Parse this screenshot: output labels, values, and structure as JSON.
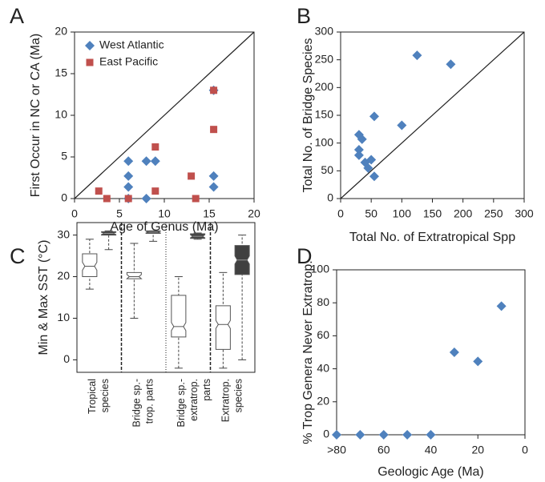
{
  "chart_data": [
    {
      "type": "scatter",
      "panel": "A",
      "xlabel": "Age of Genus (Ma)",
      "ylabel": "First Occur in NC or CA (Ma)",
      "xlim": [
        0,
        20
      ],
      "ylim": [
        0,
        20
      ],
      "xticks": [
        0,
        5,
        10,
        15,
        20
      ],
      "yticks": [
        0,
        5,
        10,
        15,
        20
      ],
      "identity_line": true,
      "legend": "upper left",
      "series": [
        {
          "name": "West Atlantic",
          "color": "#4f81bd",
          "marker": "diamond",
          "x": [
            6,
            6,
            6,
            6,
            8,
            9,
            8,
            15.5,
            15.5,
            15.5
          ],
          "values": [
            4.5,
            2.7,
            1.4,
            0,
            4.5,
            4.5,
            0,
            13,
            2.7,
            1.4
          ]
        },
        {
          "name": "East Pacific",
          "color": "#c0504d",
          "marker": "square",
          "x": [
            2.7,
            3.6,
            6,
            9,
            9,
            13,
            13.5,
            15.5,
            15.5
          ],
          "values": [
            0.9,
            0,
            0,
            6.2,
            0.9,
            2.7,
            0,
            13,
            8.3
          ]
        }
      ]
    },
    {
      "type": "scatter",
      "panel": "B",
      "xlabel": "Total No. of Extratropical Spp",
      "ylabel": "Total No. of Bridge Species",
      "xlim": [
        0,
        300
      ],
      "ylim": [
        0,
        300
      ],
      "xticks": [
        0,
        50,
        100,
        150,
        200,
        250,
        300
      ],
      "yticks": [
        0,
        50,
        100,
        150,
        200,
        250,
        300
      ],
      "identity_line": true,
      "series": [
        {
          "color": "#4f81bd",
          "marker": "diamond",
          "x": [
            30,
            35,
            30,
            30,
            40,
            45,
            50,
            55,
            55,
            100,
            125,
            180
          ],
          "values": [
            115,
            107,
            88,
            78,
            65,
            55,
            70,
            40,
            148,
            132,
            258,
            242
          ]
        }
      ]
    },
    {
      "type": "box",
      "panel": "C",
      "ylabel": "Min & Max SST (°C)",
      "ylim": [
        -3,
        33
      ],
      "yticks": [
        0,
        10,
        20,
        30
      ],
      "categories": [
        [
          "Tropical",
          "species"
        ],
        [
          "Bridge sp.-",
          "trop. parts"
        ],
        [
          "Bridge sp.-",
          "extratrop."
        ],
        [
          "Extratrop.",
          "species"
        ]
      ],
      "series": [
        {
          "color": "#ffffff",
          "stats": [
            {
              "min": 17,
              "q1": 20,
              "median": 22.5,
              "q3": 25.5,
              "max": 29
            },
            {
              "min": 10,
              "q1": 19.5,
              "median": 20,
              "q3": 21,
              "max": 28
            },
            {
              "min": -2,
              "q1": 5.5,
              "median": 8,
              "q3": 15.5,
              "max": 20
            },
            {
              "min": -2,
              "q1": 2.5,
              "median": 8.5,
              "q3": 13,
              "max": 21
            }
          ]
        },
        {
          "color": "#404040",
          "stats": [
            {
              "min": 26.5,
              "q1": 30,
              "median": 30.4,
              "q3": 30.8,
              "max": 31
            },
            {
              "min": 28.5,
              "q1": 30.4,
              "median": 30.7,
              "q3": 31,
              "max": 31
            },
            {
              "min": 29,
              "q1": 29.2,
              "median": 29.7,
              "q3": 30.3,
              "max": 30.5
            },
            {
              "min": 0,
              "q1": 20.5,
              "median": 24,
              "q3": 27.5,
              "max": 30
            }
          ]
        }
      ],
      "extra_label": "parts"
    },
    {
      "type": "scatter",
      "panel": "D",
      "xlabel": "Geologic Age (Ma)",
      "ylabel": "% Trop Genera Never Extratrop.",
      "xlim": [
        80,
        0
      ],
      "ylim": [
        0,
        100
      ],
      "xticks": [
        {
          "value": 80,
          "label": ">80"
        },
        60,
        40,
        20,
        0
      ],
      "yticks": [
        0,
        20,
        40,
        60,
        80,
        100
      ],
      "series": [
        {
          "color": "#4f81bd",
          "marker": "diamond",
          "x": [
            80,
            70,
            60,
            50,
            40,
            30,
            20,
            10
          ],
          "values": [
            0,
            0,
            0,
            0,
            0,
            50,
            44.5,
            78
          ]
        }
      ]
    }
  ]
}
